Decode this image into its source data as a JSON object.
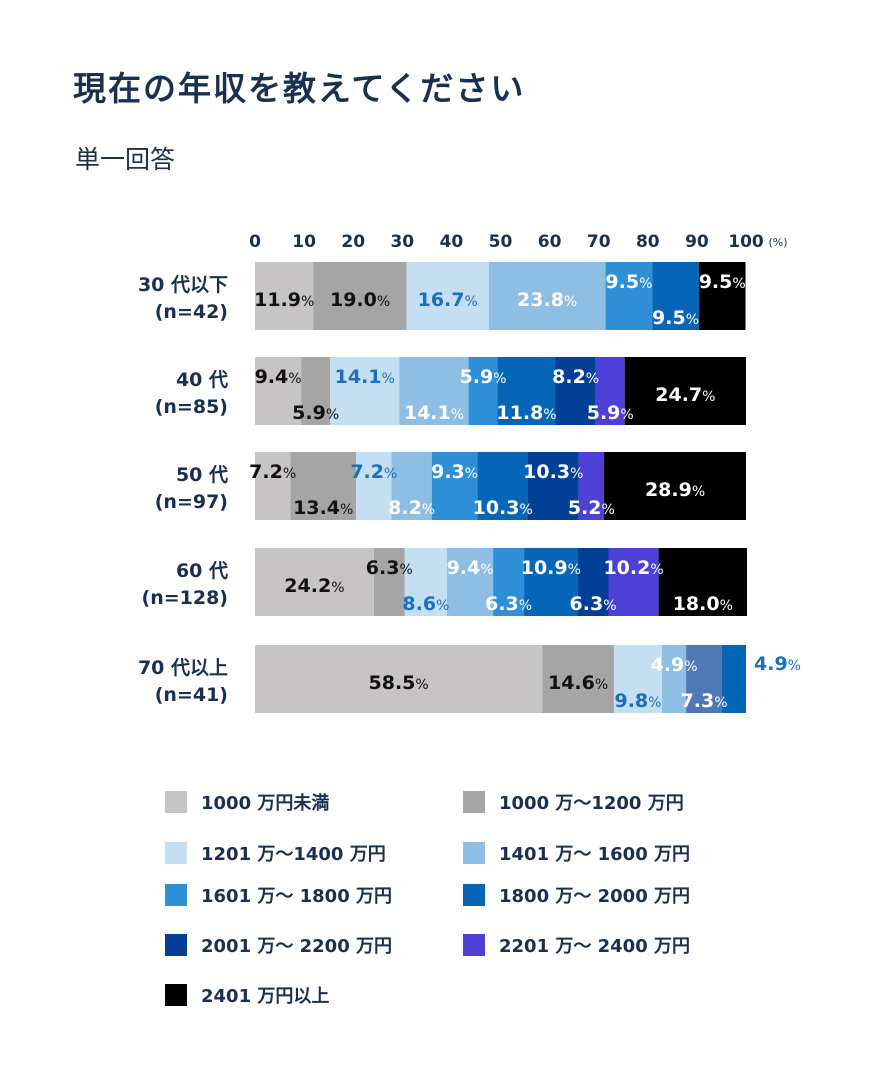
{
  "title": "現在の年収を教えてください",
  "subtitle": "単一回答",
  "chart_data": {
    "type": "bar",
    "orientation": "horizontal",
    "stacked": true,
    "xlim": [
      0,
      100
    ],
    "x_ticks": [
      "0",
      "10",
      "20",
      "30",
      "40",
      "50",
      "60",
      "70",
      "80",
      "90",
      "100"
    ],
    "x_unit": "(%)",
    "grid": false,
    "legend_position": "bottom",
    "categories": [
      {
        "label": "30 代以下",
        "n": "(n=42)"
      },
      {
        "label": "40 代",
        "n": "(n=85)"
      },
      {
        "label": "50 代",
        "n": "(n=97)"
      },
      {
        "label": "60 代",
        "n": "(n=128)"
      },
      {
        "label": "70 代以上",
        "n": "(n=41)"
      }
    ],
    "series": [
      {
        "name": "1000 万円未満",
        "color": "#c6c4c5",
        "values": [
          11.9,
          9.4,
          7.2,
          24.2,
          58.5
        ]
      },
      {
        "name": "1000 万～1200 万円",
        "color": "#a5a5a5",
        "values": [
          19.0,
          5.9,
          13.4,
          6.3,
          14.6
        ]
      },
      {
        "name": "1201 万～1400 万円",
        "color": "#c5dff2",
        "values": [
          16.7,
          14.1,
          7.2,
          8.6,
          9.8
        ]
      },
      {
        "name": "1401 万～ 1600 万円",
        "color": "#8fbee4",
        "values": [
          23.8,
          14.1,
          8.2,
          9.4,
          4.9
        ]
      },
      {
        "name": "1601 万～ 1800 万円",
        "color": "#2e8ed6",
        "values": [
          9.5,
          5.9,
          9.3,
          6.3,
          7.3
        ]
      },
      {
        "name": "1800 万～ 2000 万円",
        "color": "#0566b8",
        "values": [
          9.5,
          11.8,
          10.3,
          10.9,
          4.9
        ]
      },
      {
        "name": "2001 万～ 2200 万円",
        "color": "#033f94",
        "values": [
          0,
          8.2,
          10.3,
          6.3,
          0
        ]
      },
      {
        "name": "2201 万～ 2400 万円",
        "color": "#4c40d6",
        "values": [
          0,
          5.9,
          5.2,
          10.2,
          0
        ]
      },
      {
        "name": "2401 万円以上",
        "color": "#000000",
        "values": [
          9.5,
          24.7,
          28.9,
          18.0,
          0
        ]
      }
    ],
    "data_labels": [
      [
        [
          "11.9",
          "mid",
          "#111"
        ],
        [
          "19.0",
          "mid",
          "#111"
        ],
        [
          "16.7",
          "mid",
          "#1a6fc0"
        ],
        [
          "23.8",
          "mid",
          "#fff"
        ],
        [
          "9.5",
          "top",
          "#fff"
        ],
        [
          "9.5",
          "bottom",
          "#fff"
        ],
        null,
        null,
        [
          "9.5",
          "top",
          "#fff"
        ]
      ],
      [
        [
          "9.4",
          "top",
          "#111"
        ],
        [
          "5.9",
          "bottom",
          "#111"
        ],
        [
          "14.1",
          "top",
          "#1a6fc0"
        ],
        [
          "14.1",
          "bottom",
          "#fff"
        ],
        [
          "5.9",
          "top",
          "#fff"
        ],
        [
          "11.8",
          "bottom",
          "#fff"
        ],
        [
          "8.2",
          "top",
          "#fff"
        ],
        [
          "5.9",
          "bottom",
          "#fff"
        ],
        [
          "24.7",
          "mid",
          "#fff"
        ]
      ],
      [
        [
          "7.2",
          "top",
          "#111"
        ],
        [
          "13.4",
          "bottom",
          "#111"
        ],
        [
          "7.2",
          "top",
          "#1a6fc0"
        ],
        [
          "8.2",
          "bottom",
          "#fff"
        ],
        [
          "9.3",
          "top",
          "#fff"
        ],
        [
          "10.3",
          "bottom",
          "#fff"
        ],
        [
          "10.3",
          "top",
          "#fff"
        ],
        [
          "5.2",
          "bottom",
          "#fff"
        ],
        [
          "28.9",
          "mid",
          "#fff"
        ]
      ],
      [
        [
          "24.2",
          "mid",
          "#111"
        ],
        [
          "6.3",
          "top",
          "#111"
        ],
        [
          "8.6",
          "bottom",
          "#1a6fc0"
        ],
        [
          "9.4",
          "top",
          "#fff"
        ],
        [
          "6.3",
          "bottom",
          "#fff"
        ],
        [
          "10.9",
          "top",
          "#fff"
        ],
        [
          "6.3",
          "bottom",
          "#fff"
        ],
        [
          "10.2",
          "top",
          "#fff"
        ],
        [
          "18.0",
          "bottom",
          "#fff"
        ]
      ],
      [
        [
          "58.5",
          "mid",
          "#111"
        ],
        [
          "14.6",
          "mid",
          "#111"
        ],
        [
          "9.8",
          "bottom",
          "#1a6fc0"
        ],
        [
          "4.9",
          "top",
          "#fff"
        ],
        [
          "7.3",
          "bottom",
          "#fff"
        ],
        [
          "4.9",
          "outside",
          "#1a6fc0"
        ],
        null,
        null,
        null
      ]
    ],
    "segment_color_overrides": [
      [
        4,
        4,
        "#4f78b5"
      ]
    ]
  }
}
